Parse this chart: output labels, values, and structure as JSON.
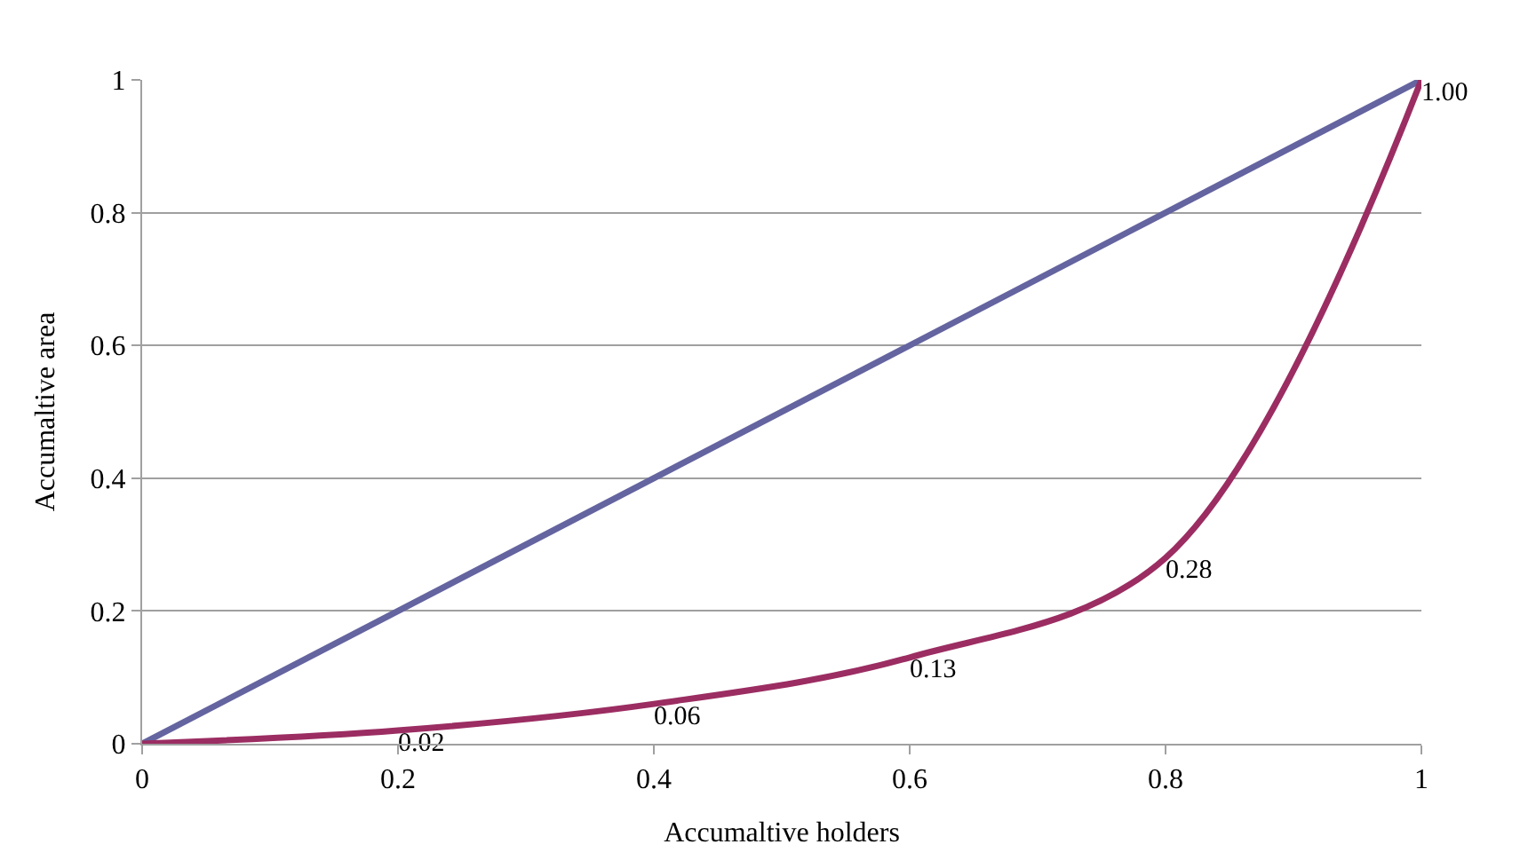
{
  "chart_data": {
    "type": "line",
    "xlabel": "Accumaltive holders",
    "ylabel": "Accumaltive area",
    "xlim": [
      0,
      1
    ],
    "ylim": [
      0,
      1
    ],
    "xticks": [
      0,
      0.2,
      0.4,
      0.6,
      0.8,
      1
    ],
    "yticks": [
      0,
      0.2,
      0.4,
      0.6,
      0.8,
      1
    ],
    "grid": "y",
    "legend": false,
    "marker": "none",
    "series": [
      {
        "color": "#6464a0",
        "x": [
          0,
          1
        ],
        "values": [
          0,
          1
        ]
      },
      {
        "color": "#9b2d62",
        "x": [
          0,
          0.2,
          0.4,
          0.6,
          0.8,
          1
        ],
        "values": [
          0,
          0.02,
          0.06,
          0.13,
          0.28,
          1.0
        ],
        "value_labels": [
          null,
          "0.02",
          "0.06",
          "0.13",
          "0.28",
          "1.00"
        ]
      }
    ]
  }
}
